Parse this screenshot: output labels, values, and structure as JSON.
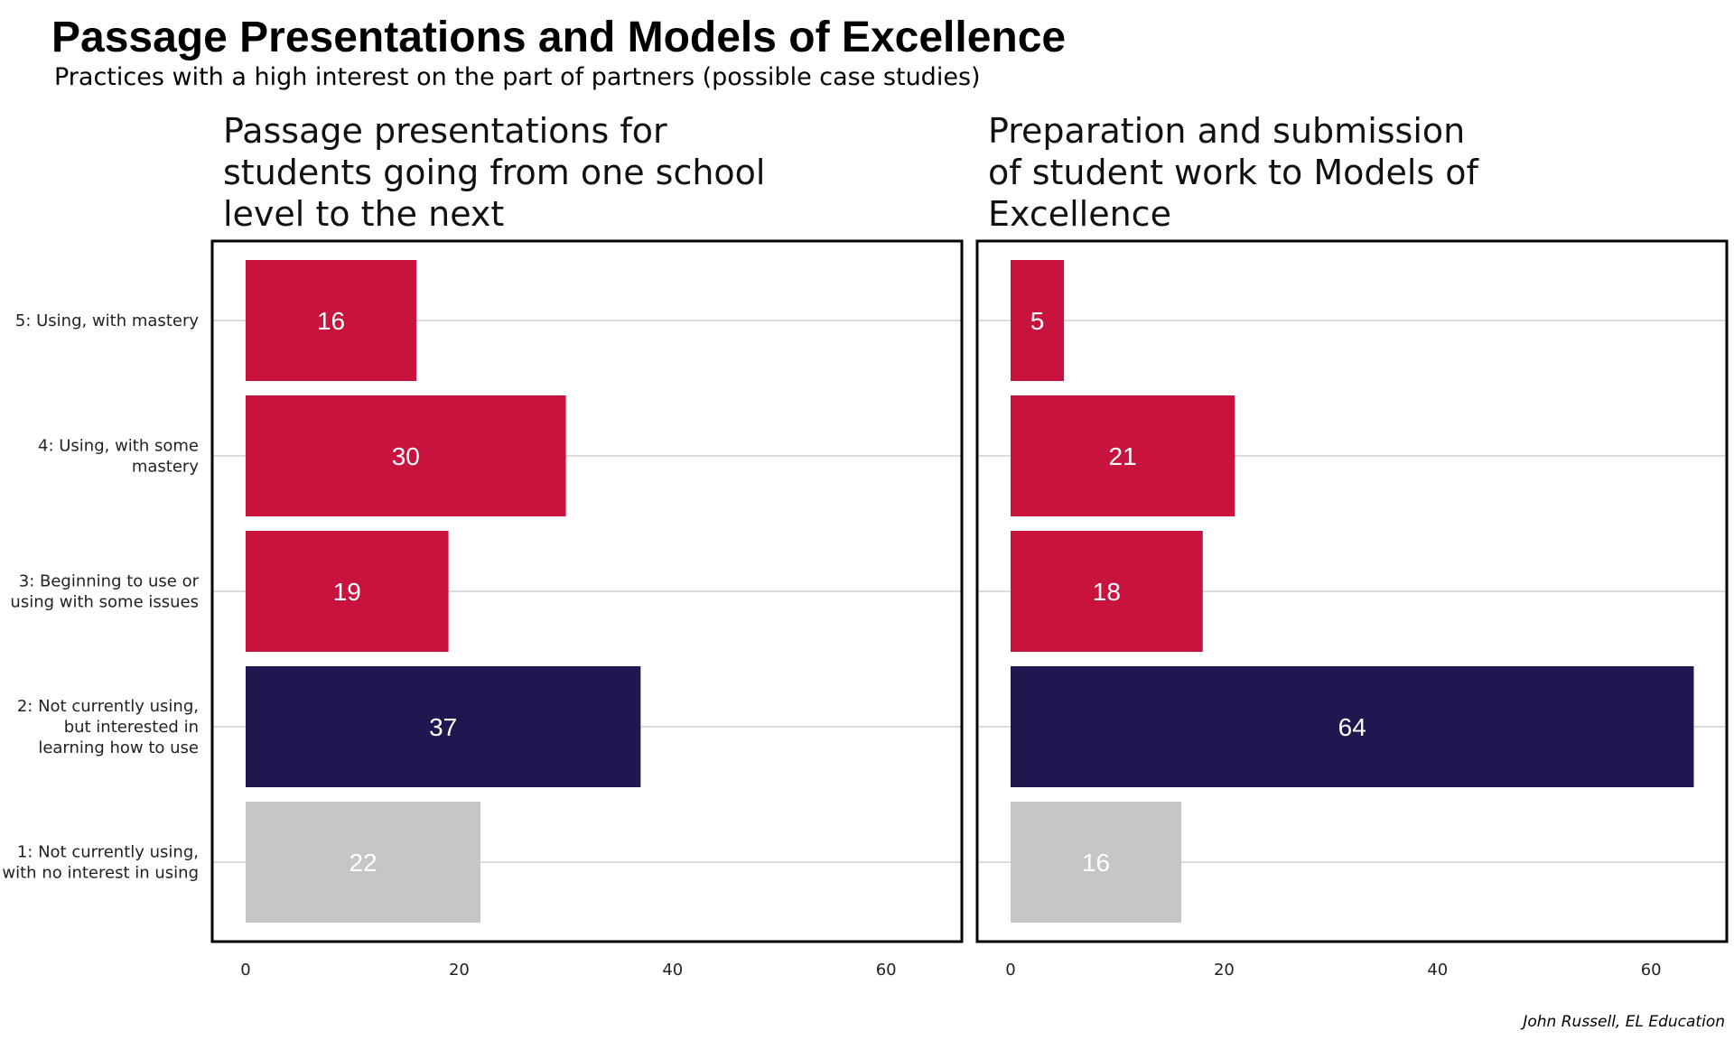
{
  "title": "Passage Presentations and Models of Excellence",
  "subtitle": "Practices with a high interest on the part of partners (possible case studies)",
  "caption": "John Russell, EL Education",
  "colors": {
    "using": "#c8133f",
    "interested": "#221650",
    "no_interest": "#c6c6c6",
    "frame": "#000000",
    "grid": "#cfcfcf"
  },
  "categories": [
    [
      "5: Using, with mastery"
    ],
    [
      "4: Using, with some",
      "mastery"
    ],
    [
      "3: Beginning to use or",
      "using with some issues"
    ],
    [
      "2: Not currently using,",
      "but interested in",
      "learning how to use"
    ],
    [
      "1: Not currently using,",
      "with no interest in using"
    ]
  ],
  "chart_data": [
    {
      "type": "bar",
      "orientation": "horizontal",
      "title": [
        "Passage presentations for",
        "students going from one school",
        "level to the next"
      ],
      "categories": [
        "5: Using, with mastery",
        "4: Using, with some mastery",
        "3: Beginning to use or using with some issues",
        "2: Not currently using, but interested in learning how to use",
        "1: Not currently using, with no interest in using"
      ],
      "values": [
        16,
        30,
        19,
        37,
        22
      ],
      "bar_colors": [
        "#c8133f",
        "#c8133f",
        "#c8133f",
        "#221650",
        "#c6c6c6"
      ],
      "xticks": [
        0,
        20,
        40,
        60
      ],
      "xlim": [
        0,
        67
      ],
      "grid": "horizontal"
    },
    {
      "type": "bar",
      "orientation": "horizontal",
      "title": [
        "Preparation and submission",
        "of student work to Models of",
        "Excellence"
      ],
      "categories": [
        "5: Using, with mastery",
        "4: Using, with some mastery",
        "3: Beginning to use or using with some issues",
        "2: Not currently using, but interested in learning how to use",
        "1: Not currently using, with no interest in using"
      ],
      "values": [
        5,
        21,
        18,
        64,
        16
      ],
      "bar_colors": [
        "#c8133f",
        "#c8133f",
        "#c8133f",
        "#221650",
        "#c6c6c6"
      ],
      "xticks": [
        0,
        20,
        40,
        60
      ],
      "xlim": [
        0,
        67
      ],
      "grid": "horizontal"
    }
  ]
}
